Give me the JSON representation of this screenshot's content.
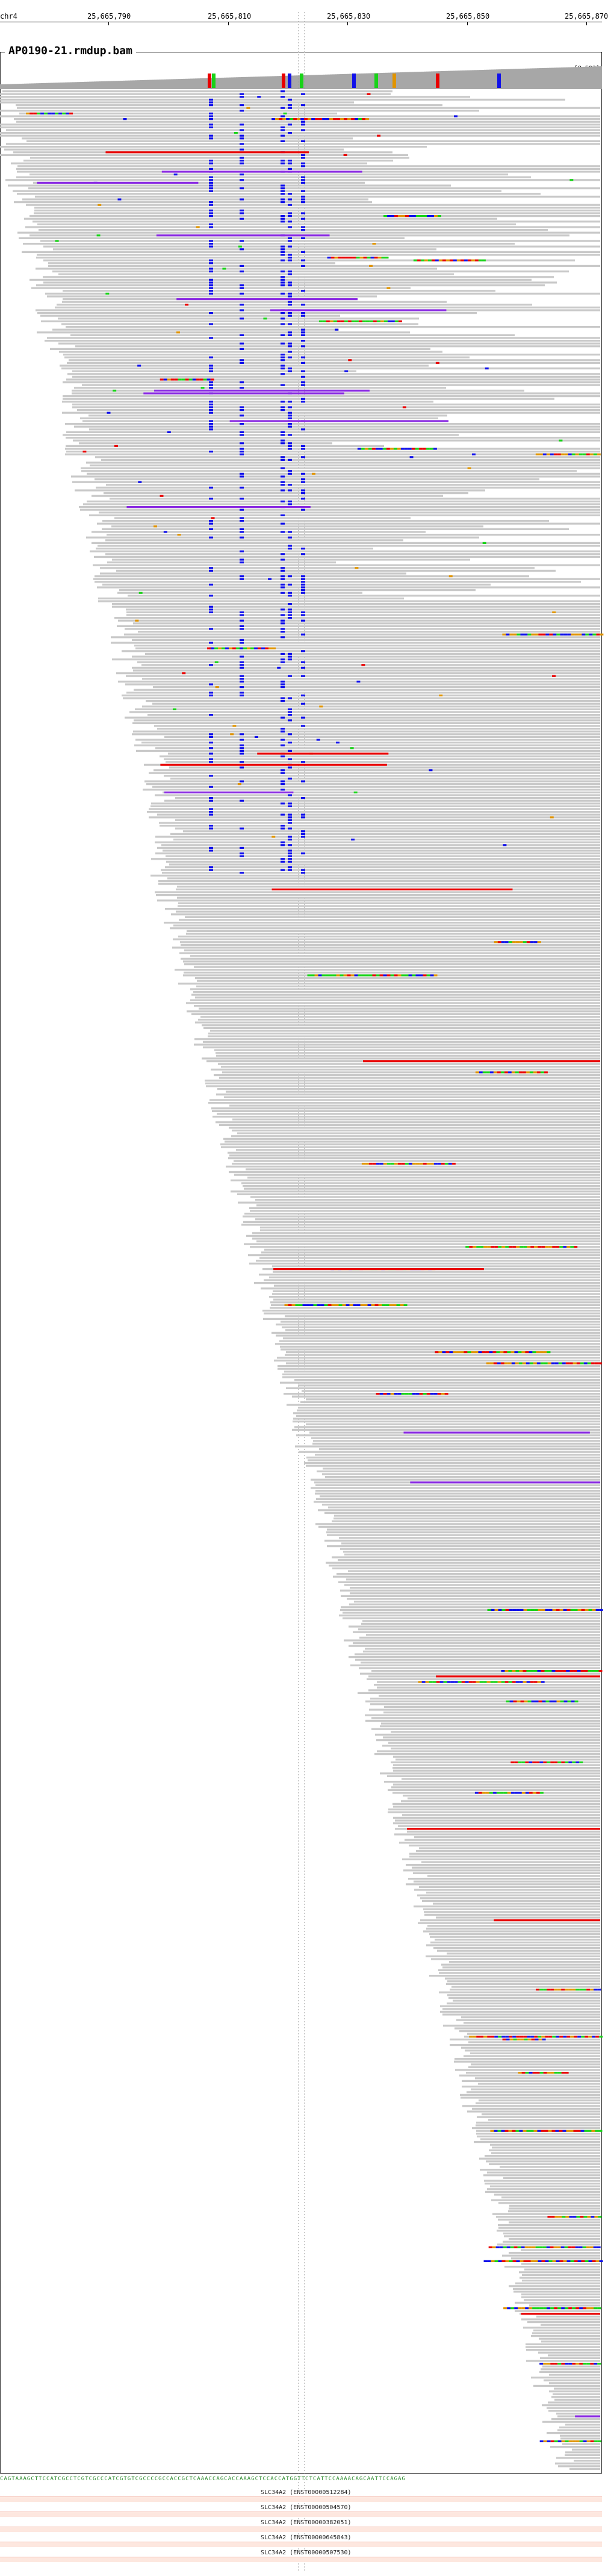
{
  "ruler": {
    "chromosome": "chr4",
    "positions": [
      "25,665,790",
      "25,665,810",
      "25,665,830",
      "25,665,850",
      "25,665,870"
    ]
  },
  "track": {
    "name": "AP0190-21.rmdup.bam",
    "coverage_scale": "[0-503]"
  },
  "colors": {
    "read": "#c9c9c9",
    "coverage": "#a7a7a7",
    "mismatch_a": "#18d318",
    "mismatch_c": "#1010ea",
    "mismatch_g": "#e09400",
    "mismatch_t": "#e80000",
    "insertion": "#8a2be2",
    "gene_bar": "#fde7df"
  },
  "sequence": "CAGTAAAGCTTCCATCGCCTCGTCGCCCATCGTGTCGCCCCGCCACCGCTCAAACCAGCACCAAAGCTCCACCATGGTTCTCATTCCAAAACAGCAATTCCAGAG",
  "genes": [
    {
      "label": "SLC34A2 (ENST00000512284)"
    },
    {
      "label": "SLC34A2 (ENST00000504570)"
    },
    {
      "label": "SLC34A2 (ENST00000382051)"
    },
    {
      "label": "SLC34A2 (ENST00000645843)"
    },
    {
      "label": "SLC34A2 (ENST00000507530)"
    }
  ]
}
